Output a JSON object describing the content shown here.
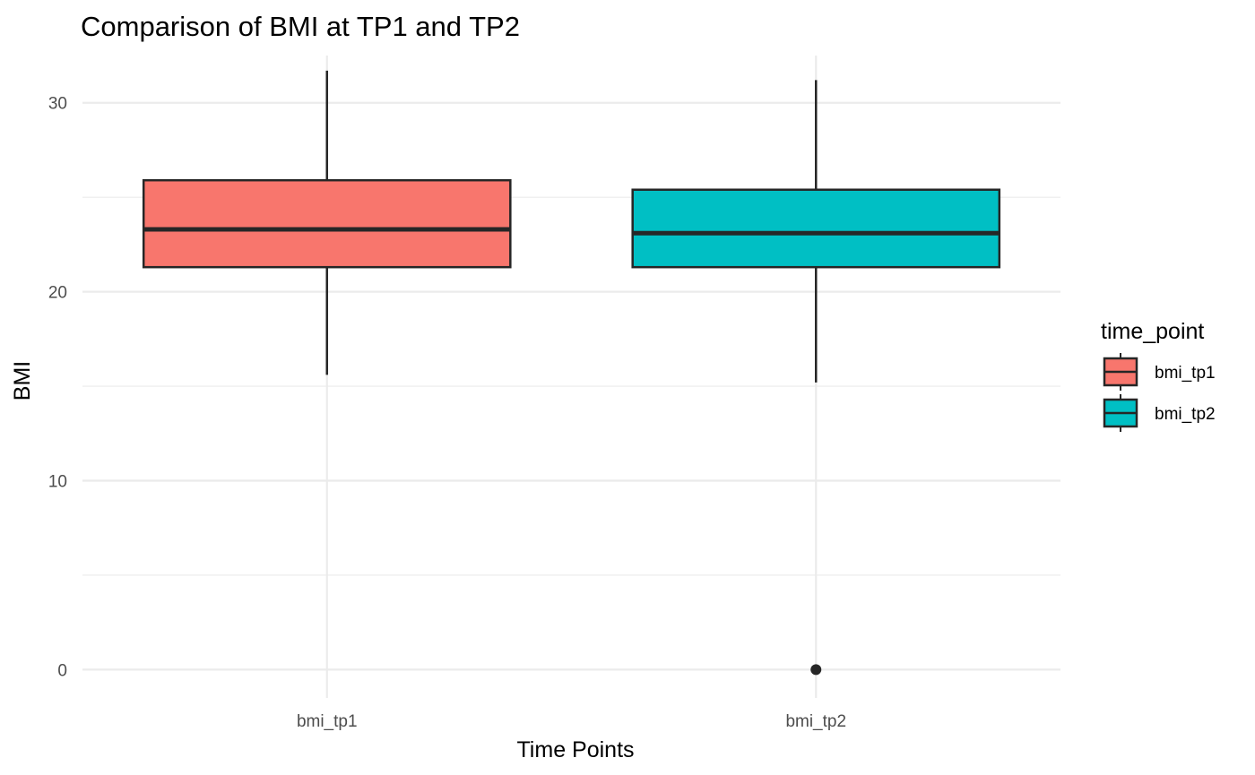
{
  "chart_data": {
    "type": "boxplot",
    "title": "Comparison of BMI at TP1 and TP2",
    "xlabel": "Time Points",
    "ylabel": "BMI",
    "categories": [
      "bmi_tp1",
      "bmi_tp2"
    ],
    "ylim": [
      -1.5,
      32.5
    ],
    "yticks": [
      0,
      10,
      20,
      30
    ],
    "grid": true,
    "legend": {
      "title": "time_point",
      "position": "right",
      "entries": [
        {
          "label": "bmi_tp1",
          "color": "#F8766D"
        },
        {
          "label": "bmi_tp2",
          "color": "#00BFC4"
        }
      ]
    },
    "boxes": [
      {
        "category": "bmi_tp1",
        "color": "#F8766D",
        "whisker_low": 15.6,
        "q1": 21.3,
        "median": 23.3,
        "q3": 25.9,
        "whisker_high": 31.7,
        "outliers": []
      },
      {
        "category": "bmi_tp2",
        "color": "#00BFC4",
        "whisker_low": 15.2,
        "q1": 21.3,
        "median": 23.1,
        "q3": 25.4,
        "whisker_high": 31.2,
        "outliers": [
          0
        ]
      }
    ]
  }
}
